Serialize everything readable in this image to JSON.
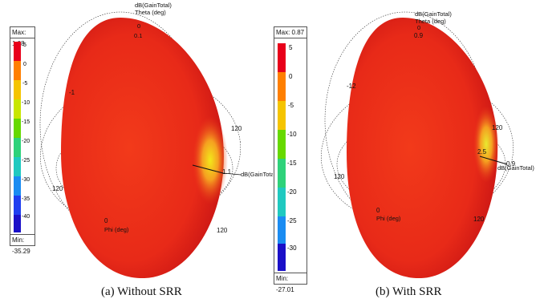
{
  "panels": [
    {
      "caption": "(a) Without SRR",
      "legend": {
        "max_label": "Max: 1.08",
        "min_label": "Min: -35.29",
        "ticks": [
          "5",
          "0",
          "-5",
          "-10",
          "-15",
          "-20",
          "-25",
          "-30",
          "-35",
          "-40"
        ],
        "colors": [
          "#e8001a",
          "#ff7f00",
          "#f5c400",
          "#c8e600",
          "#66d900",
          "#2ed27a",
          "#1fc9c0",
          "#1a8cf2",
          "#1f3ef0",
          "#1a0fc8"
        ]
      },
      "plot": {
        "top_label_1": "dB(GainTotal)",
        "top_label_2": "Theta (deg)",
        "top_tick": "0",
        "top_tick_2": "0.1",
        "left_tick": "-1",
        "right_tick_1": "120",
        "right_axis_value": "1.1",
        "right_axis_label": "dB(GainTotal)",
        "left_bottom_tick": "120",
        "phi_zero": "0",
        "phi_label": "Phi (deg)",
        "bottom_right_tick": "120"
      }
    },
    {
      "caption": "(b) With SRR",
      "legend": {
        "max_label": "Max: 0.87",
        "min_label": "Min: -27.01",
        "ticks": [
          "5",
          "0",
          "-5",
          "-10",
          "-15",
          "-20",
          "-25",
          "-30"
        ],
        "colors": [
          "#e8001a",
          "#ff7f00",
          "#f5c400",
          "#66d900",
          "#2ed27a",
          "#1fc9c0",
          "#1a8cf2",
          "#1a0fc8"
        ]
      },
      "plot": {
        "top_label_1": "dB(GainTotal)",
        "top_label_2": "Theta (deg)",
        "top_tick": "0",
        "top_tick_2": "0.9",
        "left_tick": "-12",
        "right_tick_1": "120",
        "right_axis_value": "0.9",
        "inner_value": "2.5",
        "right_axis_label": "dB(GainTotal)",
        "left_bottom_tick": "120",
        "phi_zero": "0",
        "phi_label": "Phi (deg)",
        "bottom_right_tick": "120"
      }
    }
  ]
}
